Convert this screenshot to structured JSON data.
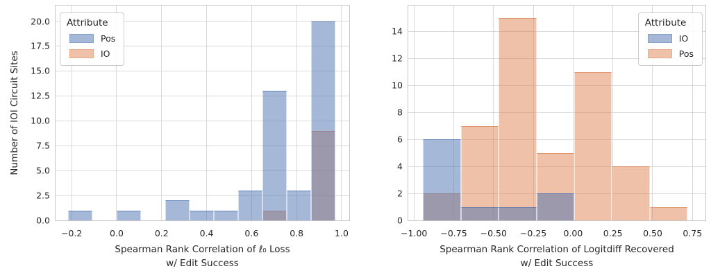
{
  "figure": {
    "background": "#ffffff",
    "text_color": "#262626",
    "grid_color": "#d9d9d9",
    "spine_color": "#c6c6c6"
  },
  "chart_data": [
    {
      "type": "histogram",
      "ylabel": "Number of IOI Circuit Sites",
      "xlabel_line1": "Spearman Rank Correlation of ℓ₀ Loss",
      "xlabel_line2": "w/ Edit Success",
      "xlim": [
        -0.2716,
        1.034
      ],
      "ylim": [
        0,
        21.57
      ],
      "grid": true,
      "xticks": [
        -0.2,
        0.0,
        0.2,
        0.4,
        0.6,
        0.8,
        1.0
      ],
      "xtick_labels": [
        "−0.2",
        "0.0",
        "0.2",
        "0.4",
        "0.6",
        "0.8",
        "1.0"
      ],
      "yticks": [
        0,
        2.5,
        5,
        7.5,
        10,
        12.5,
        15,
        17.5,
        20
      ],
      "ytick_labels": [
        "0.0",
        "2.5",
        "5.0",
        "7.5",
        "10.0",
        "12.5",
        "15.0",
        "17.5",
        "20.0"
      ],
      "bin_edges": [
        -0.216,
        -0.108,
        0.0,
        0.108,
        0.216,
        0.324,
        0.432,
        0.541,
        0.649,
        0.757,
        0.865,
        0.973
      ],
      "series": [
        {
          "name": "IO",
          "color": "#dd8452",
          "counts": [
            0,
            0,
            0,
            0,
            0,
            0,
            0,
            0,
            1,
            0,
            9
          ]
        },
        {
          "name": "Pos",
          "color": "#4c72b0",
          "counts": [
            1,
            0,
            1,
            0,
            2,
            1,
            1,
            3,
            13,
            3,
            20
          ]
        }
      ],
      "legend": {
        "title": "Attribute",
        "position": "upper-left",
        "entries": [
          {
            "label": "Pos",
            "color": "#4c72b0"
          },
          {
            "label": "IO",
            "color": "#dd8452"
          }
        ]
      }
    },
    {
      "type": "histogram",
      "ylabel": "",
      "xlabel_line1": "Spearman Rank Correlation of Logitdiff Recovered",
      "xlabel_line2": "w/ Edit Success",
      "xlim": [
        -1.0358,
        0.8316
      ],
      "ylim": [
        0,
        15.9
      ],
      "grid": true,
      "xticks": [
        -1.0,
        -0.75,
        -0.5,
        -0.25,
        0.0,
        0.25,
        0.5,
        0.75
      ],
      "xtick_labels": [
        "−1.00",
        "−0.75",
        "−0.50",
        "−0.25",
        "0.00",
        "0.25",
        "0.50",
        "0.75"
      ],
      "yticks": [
        0,
        2,
        4,
        6,
        8,
        10,
        12,
        14
      ],
      "ytick_labels": [
        "0",
        "2",
        "4",
        "6",
        "8",
        "10",
        "12",
        "14"
      ],
      "bin_edges": [
        -0.942,
        -0.705,
        -0.468,
        -0.23,
        0.007,
        0.244,
        0.481,
        0.718
      ],
      "series": [
        {
          "name": "Pos",
          "color": "#dd8452",
          "counts": [
            2,
            7,
            15,
            5,
            11,
            4,
            1
          ]
        },
        {
          "name": "IO",
          "color": "#4c72b0",
          "counts": [
            6,
            1,
            1,
            2,
            0,
            0,
            0
          ]
        }
      ],
      "legend": {
        "title": "Attribute",
        "position": "upper-right",
        "entries": [
          {
            "label": "IO",
            "color": "#4c72b0"
          },
          {
            "label": "Pos",
            "color": "#dd8452"
          }
        ]
      }
    }
  ]
}
